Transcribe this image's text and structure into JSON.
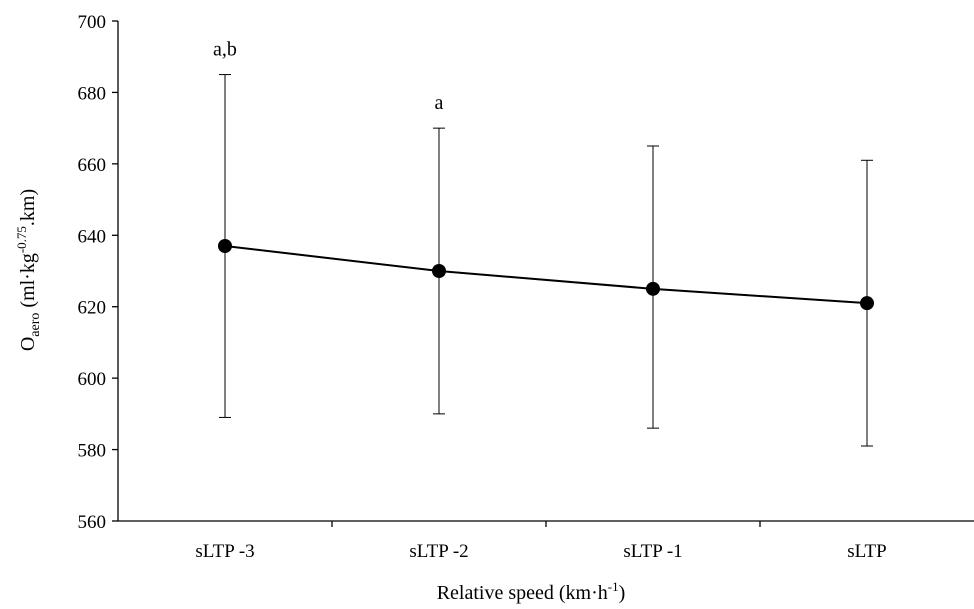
{
  "chart_data": {
    "type": "line",
    "categories": [
      "sLTP -3",
      "sLTP -2",
      "sLTP -1",
      "sLTP"
    ],
    "series": [
      {
        "values": [
          637,
          630,
          625,
          621
        ],
        "error_upper": [
          685,
          670,
          665,
          661
        ],
        "error_lower": [
          589,
          590,
          586,
          581
        ],
        "color": "#000000"
      }
    ],
    "annotations": [
      "a,b",
      "a",
      "",
      ""
    ],
    "ylim": [
      560,
      700
    ],
    "yticks": [
      "560",
      "580",
      "600",
      "620",
      "640",
      "660",
      "680",
      "700"
    ],
    "ylabel": {
      "main": "O",
      "sub": "aero",
      "unit_pre": " (ml·kg",
      "unit_sup": "-0.75",
      "unit_post": ".km)"
    },
    "xlabel": {
      "main": "Relative speed (km·h",
      "sup": "-1",
      "post": ")"
    },
    "grid": false,
    "legend": "none"
  }
}
